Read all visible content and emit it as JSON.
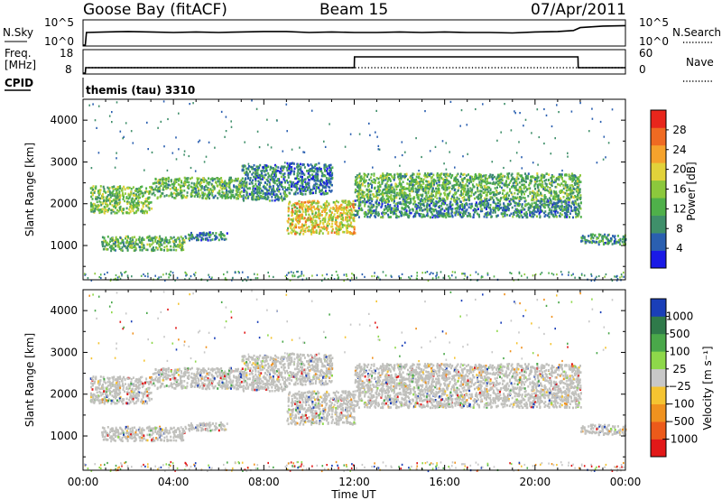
{
  "header": {
    "station": "Goose Bay (fitACF)",
    "beam": "Beam 15",
    "date": "07/Apr/2011"
  },
  "top_panels": {
    "nsky_label": "N.Sky",
    "nsearch_label": "N.Search",
    "nsky_ticks": [
      "10^5",
      "10^0"
    ],
    "nsearch_ticks": [
      "10^5",
      "10^0"
    ],
    "freq_label_1": "Freq.",
    "freq_label_2": "[MHz]",
    "freq_ticks": [
      "18",
      "8"
    ],
    "nave_label": "Nave",
    "nave_ticks": [
      "60",
      "0"
    ],
    "cpid_label": "CPID",
    "cpid_text": "themis (tau) 3310"
  },
  "chart_data": [
    {
      "type": "line",
      "title": "N.Sky / N.Search",
      "series": [
        {
          "name": "N.Sky",
          "style": "solid",
          "x_hours": [
            0.0,
            0.1,
            0.15,
            1.0,
            2.0,
            3.0,
            4.0,
            5.0,
            6.0,
            7.0,
            8.0,
            9.0,
            10.0,
            11.0,
            12.0,
            13.0,
            14.0,
            15.0,
            16.0,
            17.0,
            18.0,
            19.0,
            20.0,
            21.0,
            21.7,
            22.0,
            23.0,
            24.0
          ],
          "values_log10": [
            0.0,
            0.0,
            2.6,
            2.7,
            2.8,
            2.7,
            2.6,
            2.7,
            2.6,
            2.7,
            2.8,
            2.8,
            2.6,
            2.7,
            2.6,
            2.6,
            2.7,
            2.6,
            2.7,
            2.6,
            2.6,
            2.5,
            2.7,
            2.8,
            3.0,
            3.6,
            3.9,
            4.0
          ]
        },
        {
          "name": "N.Search",
          "style": "dotted",
          "x_hours": [],
          "values_log10": []
        }
      ]
    },
    {
      "type": "line",
      "title": "Freq. / Nave",
      "series": [
        {
          "name": "Freq. [MHz]",
          "style": "solid",
          "x_hours": [
            0.0,
            0.1,
            0.12,
            12.0,
            12.01,
            21.9,
            21.91,
            24.0
          ],
          "values": [
            8.0,
            8.0,
            10.5,
            10.5,
            15.5,
            15.5,
            10.5,
            10.5
          ],
          "ylim": [
            8,
            18
          ]
        },
        {
          "name": "Nave",
          "style": "dotted",
          "x_hours": [
            0.1,
            24.0
          ],
          "values": [
            15,
            15
          ],
          "ylim": [
            0,
            60
          ]
        }
      ]
    },
    {
      "type": "heatmap",
      "quantity": "Power",
      "ylabel": "Slant Range [km]",
      "xlabel": "Time UT",
      "ylim": [
        180,
        4500
      ],
      "xlim_hours": [
        0,
        24
      ],
      "yticks": [
        1000,
        2000,
        3000,
        4000
      ],
      "colorbar_label": "Power [dB]",
      "colorbar_ticks": [
        "4",
        "8",
        "12",
        "16",
        "20",
        "24",
        "28"
      ],
      "colorbar_colors": [
        "#1a1ae6",
        "#2a5fb0",
        "#3f8f6a",
        "#4fb04a",
        "#8cc83c",
        "#e2d23a",
        "#f5a22c",
        "#ef6a22",
        "#e8261c"
      ],
      "scatter_regions": [
        {
          "t0": 0.3,
          "t1": 3.0,
          "r0": 1800,
          "r1": 2450,
          "value_dB": 14
        },
        {
          "t0": 3.0,
          "t1": 7.0,
          "r0": 2150,
          "r1": 2650,
          "value_dB": 12
        },
        {
          "t0": 7.0,
          "t1": 9.0,
          "r0": 2100,
          "r1": 2950,
          "value_dB": 8
        },
        {
          "t0": 0.8,
          "t1": 4.5,
          "r0": 900,
          "r1": 1250,
          "value_dB": 12
        },
        {
          "t0": 4.5,
          "t1": 6.4,
          "r0": 1150,
          "r1": 1350,
          "value_dB": 8
        },
        {
          "t0": 9.0,
          "t1": 12.0,
          "r0": 1300,
          "r1": 2100,
          "value_dB": 20
        },
        {
          "t0": 9.0,
          "t1": 11.0,
          "r0": 2250,
          "r1": 3000,
          "value_dB": 6
        },
        {
          "t0": 12.0,
          "t1": 22.0,
          "r0": 2100,
          "r1": 2750,
          "value_dB": 12
        },
        {
          "t0": 12.0,
          "t1": 22.0,
          "r0": 1700,
          "r1": 2100,
          "value_dB": 8
        },
        {
          "t0": 22.0,
          "t1": 24.0,
          "r0": 1050,
          "r1": 1300,
          "value_dB": 8
        }
      ]
    },
    {
      "type": "heatmap",
      "quantity": "Velocity",
      "ylabel": "Slant Range [km]",
      "xlabel": "Time UT",
      "ylim": [
        180,
        4500
      ],
      "xlim_hours": [
        0,
        24
      ],
      "yticks": [
        1000,
        2000,
        3000,
        4000
      ],
      "colorbar_label": "Velocity [m s⁻¹]",
      "colorbar_ticks": [
        "1000",
        "500",
        "100",
        "25",
        "−25",
        "−100",
        "−500",
        "−1000"
      ],
      "colorbar_colors": [
        "#1a3fb8",
        "#2f7a4a",
        "#4aa84a",
        "#8ed84a",
        "#c8c8c8",
        "#f5c431",
        "#f0921f",
        "#ec5a1a",
        "#e21818"
      ],
      "ground_scatter_color": "#c0c0bc"
    }
  ],
  "axes": {
    "ylabel": "Slant Range [km]",
    "yticks": [
      "1000",
      "2000",
      "3000",
      "4000"
    ],
    "xticks": [
      "00:00",
      "04:00",
      "08:00",
      "12:00",
      "16:00",
      "20:00",
      "00:00"
    ],
    "xlabel": "Time UT"
  },
  "power_colorbar": {
    "label": "Power [dB]",
    "ticks": [
      "4",
      "8",
      "12",
      "16",
      "20",
      "24",
      "28"
    ]
  },
  "velocity_colorbar": {
    "label": "Velocity [m s⁻¹]",
    "ticks": [
      "1000",
      "500",
      "100",
      "25",
      "−25",
      "−100",
      "−500",
      "−1000"
    ]
  }
}
